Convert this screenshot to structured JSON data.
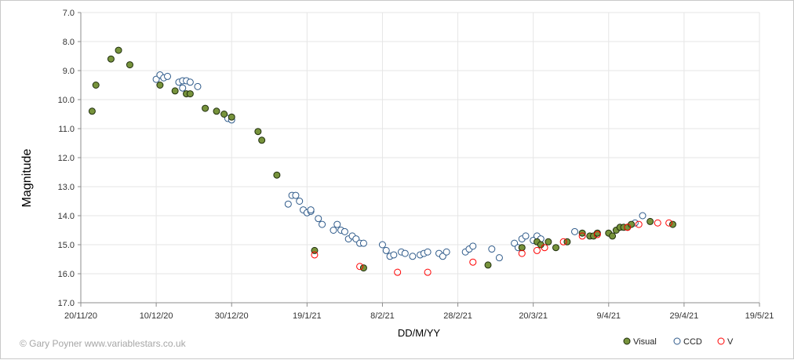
{
  "credit": "© Gary Poyner www.variablestars.co.uk",
  "chart_data": {
    "type": "scatter",
    "xlabel": "DD/M/YY",
    "ylabel": "Magnitude",
    "x_range": [
      "2020-11-20",
      "2021-05-19"
    ],
    "x_ticks": [
      "20/11/20",
      "10/12/20",
      "30/12/20",
      "19/1/21",
      "8/2/21",
      "28/2/21",
      "20/3/21",
      "9/4/21",
      "29/4/21",
      "19/5/21"
    ],
    "y_range": [
      7.0,
      17.0
    ],
    "y_inverted": true,
    "y_ticks": [
      "7.0",
      "8.0",
      "9.0",
      "10.0",
      "11.0",
      "12.0",
      "13.0",
      "14.0",
      "15.0",
      "16.0",
      "17.0"
    ],
    "grid": true,
    "legend_position": "bottom-right",
    "colors": {
      "visual_fill": "#77933c",
      "visual_stroke": "#1f2e0d",
      "ccd_stroke": "#2e5a8a",
      "v_stroke": "#ff0000",
      "grid": "#e6e6e6",
      "axis": "#8c8c8c"
    },
    "series": [
      {
        "name": "Visual",
        "marker": "filled-circle",
        "points": [
          [
            "2020-11-23",
            10.4
          ],
          [
            "2020-11-24",
            9.5
          ],
          [
            "2020-11-28",
            8.6
          ],
          [
            "2020-11-30",
            8.3
          ],
          [
            "2020-12-03",
            8.8
          ],
          [
            "2020-12-11",
            9.5
          ],
          [
            "2020-12-15",
            9.7
          ],
          [
            "2020-12-18",
            9.8
          ],
          [
            "2020-12-19",
            9.8
          ],
          [
            "2020-12-23",
            10.3
          ],
          [
            "2020-12-26",
            10.4
          ],
          [
            "2020-12-28",
            10.5
          ],
          [
            "2020-12-30",
            10.6
          ],
          [
            "2021-01-06",
            11.1
          ],
          [
            "2021-01-07",
            11.4
          ],
          [
            "2021-01-11",
            12.6
          ],
          [
            "2021-01-21",
            15.2
          ],
          [
            "2021-02-03",
            15.8
          ],
          [
            "2021-03-08",
            15.7
          ],
          [
            "2021-03-17",
            15.1
          ],
          [
            "2021-03-21",
            14.9
          ],
          [
            "2021-03-22",
            15.0
          ],
          [
            "2021-03-24",
            14.9
          ],
          [
            "2021-03-26",
            15.1
          ],
          [
            "2021-03-29",
            14.9
          ],
          [
            "2021-04-02",
            14.6
          ],
          [
            "2021-04-04",
            14.7
          ],
          [
            "2021-04-05",
            14.7
          ],
          [
            "2021-04-06",
            14.6
          ],
          [
            "2021-04-09",
            14.6
          ],
          [
            "2021-04-10",
            14.7
          ],
          [
            "2021-04-11",
            14.5
          ],
          [
            "2021-04-12",
            14.4
          ],
          [
            "2021-04-13",
            14.4
          ],
          [
            "2021-04-14",
            14.4
          ],
          [
            "2021-04-15",
            14.3
          ],
          [
            "2021-04-20",
            14.2
          ],
          [
            "2021-04-26",
            14.3
          ]
        ]
      },
      {
        "name": "CCD",
        "marker": "open-circle",
        "points": [
          [
            "2020-12-10",
            9.3
          ],
          [
            "2020-12-11",
            9.15
          ],
          [
            "2020-12-12",
            9.25
          ],
          [
            "2020-12-13",
            9.2
          ],
          [
            "2020-12-16",
            9.4
          ],
          [
            "2020-12-17",
            9.35
          ],
          [
            "2020-12-18",
            9.35
          ],
          [
            "2020-12-19",
            9.4
          ],
          [
            "2020-12-17",
            9.6
          ],
          [
            "2020-12-21",
            9.55
          ],
          [
            "2020-12-29",
            10.65
          ],
          [
            "2020-12-30",
            10.7
          ],
          [
            "2021-01-14",
            13.6
          ],
          [
            "2021-01-15",
            13.3
          ],
          [
            "2021-01-16",
            13.3
          ],
          [
            "2021-01-17",
            13.5
          ],
          [
            "2021-01-18",
            13.8
          ],
          [
            "2021-01-19",
            13.9
          ],
          [
            "2021-01-20",
            13.85
          ],
          [
            "2021-01-20",
            13.8
          ],
          [
            "2021-01-22",
            14.1
          ],
          [
            "2021-01-23",
            14.3
          ],
          [
            "2021-01-26",
            14.5
          ],
          [
            "2021-01-27",
            14.3
          ],
          [
            "2021-01-28",
            14.5
          ],
          [
            "2021-01-29",
            14.55
          ],
          [
            "2021-01-30",
            14.8
          ],
          [
            "2021-01-31",
            14.7
          ],
          [
            "2021-02-01",
            14.8
          ],
          [
            "2021-02-02",
            14.95
          ],
          [
            "2021-02-03",
            14.95
          ],
          [
            "2021-02-08",
            15.0
          ],
          [
            "2021-02-09",
            15.2
          ],
          [
            "2021-02-10",
            15.4
          ],
          [
            "2021-02-11",
            15.35
          ],
          [
            "2021-02-13",
            15.25
          ],
          [
            "2021-02-14",
            15.3
          ],
          [
            "2021-02-16",
            15.4
          ],
          [
            "2021-02-18",
            15.35
          ],
          [
            "2021-02-19",
            15.3
          ],
          [
            "2021-02-20",
            15.25
          ],
          [
            "2021-02-23",
            15.3
          ],
          [
            "2021-02-24",
            15.4
          ],
          [
            "2021-02-25",
            15.25
          ],
          [
            "2021-03-02",
            15.25
          ],
          [
            "2021-03-03",
            15.15
          ],
          [
            "2021-03-04",
            15.05
          ],
          [
            "2021-03-09",
            15.15
          ],
          [
            "2021-03-11",
            15.45
          ],
          [
            "2021-03-15",
            14.95
          ],
          [
            "2021-03-16",
            15.1
          ],
          [
            "2021-03-17",
            14.8
          ],
          [
            "2021-03-18",
            14.7
          ],
          [
            "2021-03-20",
            14.85
          ],
          [
            "2021-03-21",
            14.7
          ],
          [
            "2021-03-22",
            14.8
          ],
          [
            "2021-03-31",
            14.55
          ],
          [
            "2021-04-16",
            14.25
          ],
          [
            "2021-04-18",
            14.0
          ]
        ]
      },
      {
        "name": "V",
        "marker": "open-circle",
        "points": [
          [
            "2021-01-21",
            15.35
          ],
          [
            "2021-02-02",
            15.75
          ],
          [
            "2021-02-12",
            15.95
          ],
          [
            "2021-02-20",
            15.95
          ],
          [
            "2021-03-04",
            15.6
          ],
          [
            "2021-03-17",
            15.3
          ],
          [
            "2021-03-21",
            15.2
          ],
          [
            "2021-03-23",
            15.1
          ],
          [
            "2021-03-28",
            14.9
          ],
          [
            "2021-04-02",
            14.7
          ],
          [
            "2021-04-06",
            14.65
          ],
          [
            "2021-04-14",
            14.4
          ],
          [
            "2021-04-17",
            14.3
          ],
          [
            "2021-04-22",
            14.25
          ],
          [
            "2021-04-25",
            14.25
          ]
        ]
      }
    ]
  }
}
